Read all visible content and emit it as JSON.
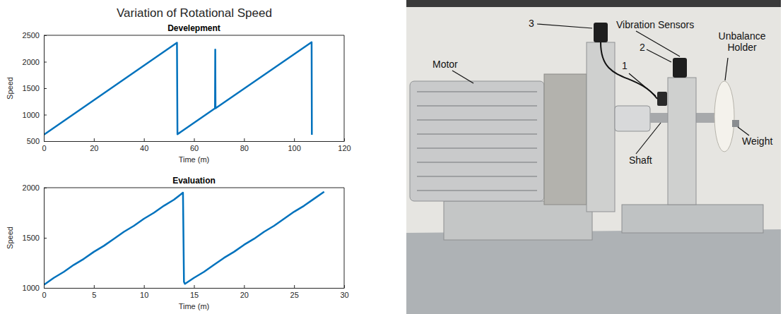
{
  "title": "Variation of Rotational Speed",
  "chart_data": [
    {
      "type": "line",
      "title": "Develepment",
      "x_label": "Time (m)",
      "y_label": "Speed",
      "x": [
        0,
        53.2,
        53.4,
        68.4,
        68.5,
        68.6,
        107,
        107.1
      ],
      "series": [
        {
          "color": "#0072bd",
          "values": [
            620,
            2360,
            630,
            1120,
            2230,
            1120,
            2370,
            620
          ]
        }
      ],
      "xlim": [
        0,
        120
      ],
      "ylim": [
        500,
        2500
      ],
      "xticks": [
        0,
        20,
        40,
        60,
        80,
        100,
        120
      ],
      "yticks": [
        500,
        1000,
        1500,
        2000,
        2500
      ],
      "grid": false
    },
    {
      "type": "line",
      "title": "Evaluation",
      "x_label": "Time (m)",
      "y_label": "Speed",
      "x": [
        0,
        1,
        2,
        3,
        4,
        5,
        6,
        7,
        8,
        9,
        10,
        11,
        12,
        13,
        13.9,
        14.0,
        14.1,
        15,
        16,
        17,
        18,
        19,
        20,
        21,
        22,
        23,
        24,
        25,
        26,
        27,
        28
      ],
      "series": [
        {
          "color": "#0072bd",
          "values": [
            1030,
            1100,
            1160,
            1230,
            1290,
            1360,
            1420,
            1490,
            1560,
            1620,
            1690,
            1750,
            1820,
            1880,
            1950,
            1060,
            1040,
            1100,
            1160,
            1230,
            1300,
            1360,
            1430,
            1490,
            1560,
            1620,
            1690,
            1760,
            1820,
            1890,
            1960
          ]
        }
      ],
      "xlim": [
        0,
        30
      ],
      "ylim": [
        1000,
        2000
      ],
      "xticks": [
        0,
        5,
        10,
        15,
        20,
        25,
        30
      ],
      "yticks": [
        1000,
        1500,
        2000
      ],
      "grid": false
    }
  ],
  "photo": {
    "labels": [
      "Motor",
      "3",
      "Vibration Sensors",
      "1",
      "2",
      "Unbalance Holder",
      "Weight",
      "Shaft"
    ]
  }
}
